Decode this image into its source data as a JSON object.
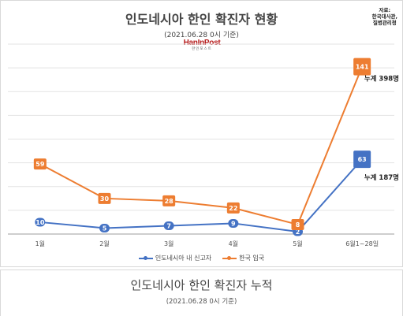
{
  "header": {
    "title": "인도네시아 한인 확진자 현황",
    "subtitle": "(2021.06.28 0시 기준)",
    "source_line1": "자료:",
    "source_line2": "한국대사관,",
    "source_line3": "질병관리청",
    "logo_main": "HanIn",
    "logo_post": "Post",
    "logo_sub": "한인포스트"
  },
  "chart_data": {
    "type": "line",
    "categories": [
      "1월",
      "2월",
      "3월",
      "4월",
      "5월",
      "6월1~28일"
    ],
    "series": [
      {
        "name": "인도네시아 내 신고자",
        "color": "#4472c4",
        "values": [
          10,
          5,
          7,
          9,
          2,
          63
        ],
        "total_label": "누계 187명"
      },
      {
        "name": "한국 입국",
        "color": "#ed7d31",
        "values": [
          59,
          30,
          28,
          22,
          8,
          141
        ],
        "total_label": "누계 398명"
      }
    ],
    "ylim": [
      0,
      160
    ],
    "grid": true,
    "legend_position": "bottom"
  },
  "footer": {
    "title": "인도네시아 한인 확진자 누적",
    "subtitle": "(2021.06.28 0시 기준)"
  }
}
